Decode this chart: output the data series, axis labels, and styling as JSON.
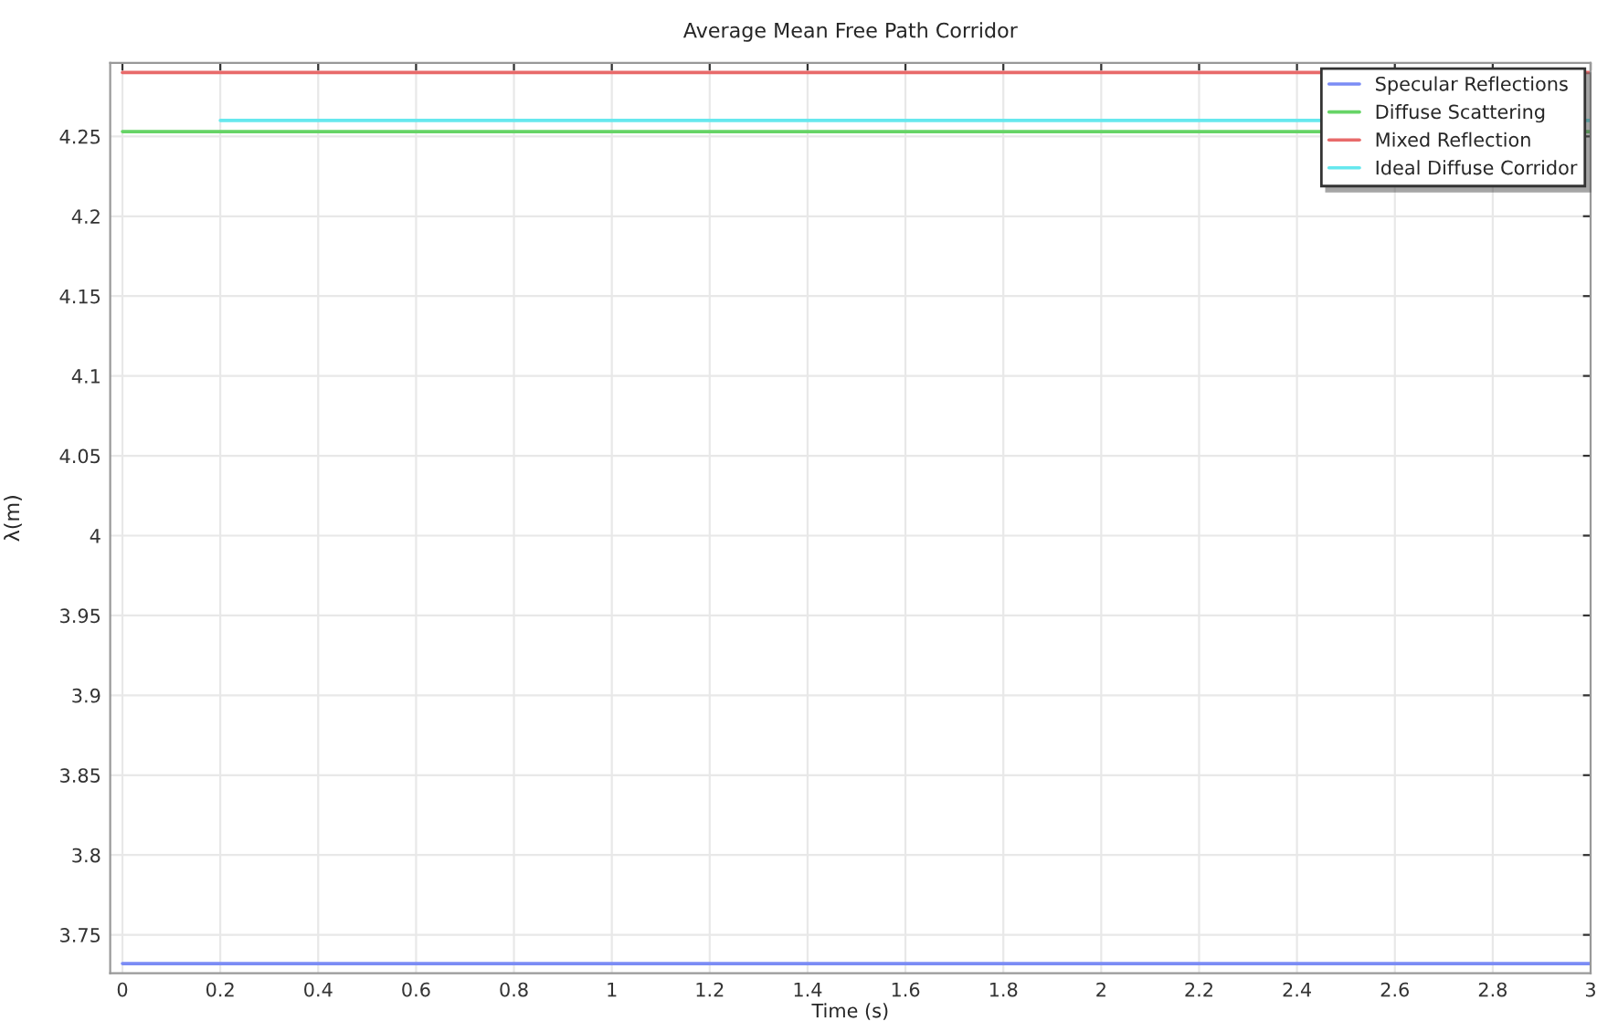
{
  "chart_data": {
    "type": "line",
    "title": "Average Mean Free Path Corridor",
    "xlabel": "Time (s)",
    "ylabel": "λ(m)",
    "series": [
      {
        "name": "Specular Reflections",
        "color": "#7b8cf5",
        "x": [
          0,
          3
        ],
        "values": [
          3.732,
          3.732
        ]
      },
      {
        "name": "Diffuse Scattering",
        "color": "#66d466",
        "x": [
          0,
          3
        ],
        "values": [
          4.253,
          4.253
        ]
      },
      {
        "name": "Mixed Reflection",
        "color": "#e86a6a",
        "x": [
          0,
          3
        ],
        "values": [
          4.29,
          4.29
        ]
      },
      {
        "name": "Ideal Diffuse Corridor",
        "color": "#66e8ee",
        "x": [
          0.2,
          3
        ],
        "values": [
          4.26,
          4.26
        ]
      }
    ],
    "xlim": [
      -0.025,
      3.0
    ],
    "ylim": [
      3.726,
      4.296
    ],
    "xticks": [
      0,
      0.2,
      0.4,
      0.6,
      0.8,
      1,
      1.2,
      1.4,
      1.6,
      1.8,
      2,
      2.2,
      2.4,
      2.6,
      2.8,
      3
    ],
    "yticks": [
      3.75,
      3.8,
      3.85,
      3.9,
      3.95,
      4,
      4.05,
      4.1,
      4.15,
      4.2,
      4.25
    ],
    "grid": true,
    "legend": "top right",
    "marker": "none",
    "line_style": "solid"
  }
}
